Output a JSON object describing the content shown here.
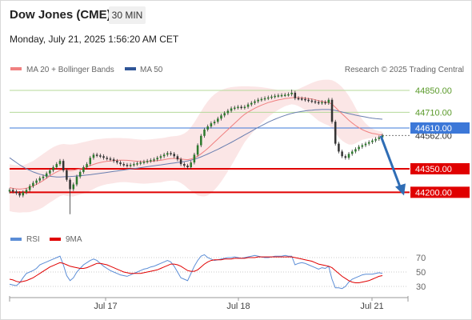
{
  "header": {
    "title": "Dow Jones (CME)",
    "timeframe": "30 MIN",
    "datetime": "Monday, July 21, 2025 1:56:20 AM CET"
  },
  "legend": {
    "ma20_bb": "MA 20 + Bollinger Bands",
    "ma50": "MA 50",
    "credit": "Research © 2025 Trading Central"
  },
  "rsi_legend": {
    "rsi": "RSI",
    "ma9": "9MA"
  },
  "colors": {
    "ma20": "#f08080",
    "ma50": "#2f5597",
    "bollinger": "#fadcdc",
    "support": "#e00000",
    "resistance": "#7ab648",
    "pivot": "#3c78d8",
    "candle": "#2d7a2d",
    "rsi": "#5b8dd6",
    "rsi_ma": "#e00000"
  },
  "chart_data": [
    {
      "type": "candlestick",
      "title": "",
      "x_ticks": [
        "Jul 17",
        "Jul 18",
        "Jul 21"
      ],
      "ylim": [
        44100,
        44950
      ],
      "levels": [
        {
          "label": "44850.00",
          "value": 44850,
          "kind": "resistance"
        },
        {
          "label": "44710.00",
          "value": 44710,
          "kind": "resistance"
        },
        {
          "label": "44610.00",
          "value": 44610,
          "kind": "pivot"
        },
        {
          "label": "44562.00",
          "value": 44562,
          "kind": "last"
        },
        {
          "label": "44350.00",
          "value": 44350,
          "kind": "support"
        },
        {
          "label": "44200.00",
          "value": 44200,
          "kind": "support"
        }
      ],
      "projection": {
        "from": 44560,
        "to": 44200,
        "direction": "down"
      },
      "closes": [
        44215,
        44205,
        44195,
        44180,
        44200,
        44215,
        44240,
        44260,
        44275,
        44290,
        44300,
        44320,
        44340,
        44360,
        44380,
        44400,
        44340,
        44280,
        44220,
        44250,
        44300,
        44330,
        44360,
        44380,
        44420,
        44440,
        44435,
        44430,
        44420,
        44415,
        44410,
        44400,
        44390,
        44380,
        44375,
        44370,
        44375,
        44380,
        44385,
        44390,
        44395,
        44400,
        44405,
        44410,
        44420,
        44430,
        44440,
        44450,
        44445,
        44430,
        44410,
        44380,
        44370,
        44360,
        44390,
        44440,
        44500,
        44560,
        44600,
        44620,
        44640,
        44650,
        44670,
        44690,
        44705,
        44720,
        44735,
        44740,
        44745,
        44740,
        44745,
        44760,
        44770,
        44780,
        44790,
        44795,
        44800,
        44805,
        44810,
        44815,
        44818,
        44820,
        44822,
        44825,
        44835,
        44800,
        44798,
        44795,
        44790,
        44785,
        44780,
        44775,
        44770,
        44775,
        44770,
        44790,
        44650,
        44510,
        44460,
        44430,
        44420,
        44445,
        44460,
        44475,
        44490,
        44500,
        44510,
        44520,
        44530,
        44540,
        44550,
        44562
      ],
      "ma20": [
        44230,
        44225,
        44222,
        44220,
        44222,
        44226,
        44232,
        44240,
        44250,
        44262,
        44275,
        44290,
        44305,
        44318,
        44330,
        44340,
        44345,
        44342,
        44338,
        44340,
        44345,
        44350,
        44356,
        44362,
        44370,
        44378,
        44385,
        44390,
        44394,
        44398,
        44400,
        44402,
        44404,
        44405,
        44405,
        44404,
        44402,
        44400,
        44398,
        44396,
        44395,
        44396,
        44398,
        44400,
        44402,
        44404,
        44408,
        44412,
        44415,
        44416,
        44415,
        44412,
        44410,
        44408,
        44412,
        44420,
        44430,
        44445,
        44462,
        44480,
        44500,
        44520,
        44540,
        44560,
        44580,
        44600,
        44620,
        44640,
        44660,
        44680,
        44698,
        44712,
        44724,
        44736,
        44746,
        44756,
        44764,
        44772,
        44778,
        44784,
        44789,
        44793,
        44797,
        44800,
        44803,
        44804,
        44804,
        44803,
        44801,
        44798,
        44795,
        44790,
        44784,
        44780,
        44776,
        44772,
        44762,
        44742,
        44720,
        44700,
        44680,
        44660,
        44642,
        44626,
        44612,
        44600,
        44590,
        44582,
        44576,
        44572,
        44568,
        44565
      ],
      "ma50": [
        44420,
        44405,
        44390,
        44375,
        44362,
        44350,
        44340,
        44330,
        44322,
        44315,
        44310,
        44305,
        44302,
        44300,
        44298,
        44298,
        44299,
        44300,
        44301,
        44302,
        44304,
        44306,
        44308,
        44310,
        44312,
        44315,
        44318,
        44321,
        44324,
        44327,
        44330,
        44333,
        44336,
        44339,
        44342,
        44345,
        44348,
        44351,
        44354,
        44357,
        44360,
        44363,
        44366,
        44369,
        44372,
        44375,
        44378,
        44381,
        44384,
        44387,
        44390,
        44393,
        44396,
        44400,
        44405,
        44411,
        44418,
        44426,
        44435,
        44444,
        44454,
        44464,
        44474,
        44485,
        44496,
        44507,
        44518,
        44530,
        44542,
        44554,
        44566,
        44578,
        44590,
        44602,
        44614,
        44625,
        44636,
        44647,
        44657,
        44666,
        44675,
        44683,
        44690,
        44697,
        44703,
        44708,
        44712,
        44716,
        44719,
        44722,
        44724,
        44726,
        44727,
        44728,
        44728,
        44728,
        44726,
        44722,
        44717,
        44712,
        44707,
        44702,
        44697,
        44692,
        44688,
        44684,
        44680,
        44676,
        44673,
        44670,
        44668,
        44666
      ],
      "bb_upper": [
        44380,
        44375,
        44372,
        44370,
        44372,
        44380,
        44390,
        44400,
        44415,
        44430,
        44445,
        44460,
        44475,
        44488,
        44498,
        44505,
        44508,
        44506,
        44504,
        44506,
        44510,
        44515,
        44520,
        44525,
        44530,
        44535,
        44538,
        44540,
        44542,
        44544,
        44545,
        44546,
        44546,
        44546,
        44545,
        44544,
        44542,
        44540,
        44538,
        44536,
        44535,
        44536,
        44538,
        44540,
        44542,
        44545,
        44548,
        44552,
        44556,
        44558,
        44560,
        44565,
        44575,
        44590,
        44615,
        44645,
        44680,
        44715,
        44750,
        44780,
        44805,
        44825,
        44840,
        44852,
        44860,
        44866,
        44870,
        44873,
        44875,
        44876,
        44876,
        44876,
        44875,
        44874,
        44872,
        44870,
        44867,
        44864,
        44860,
        44856,
        44852,
        44848,
        44845,
        44844,
        44845,
        44850,
        44858,
        44868,
        44878,
        44888,
        44898,
        44906,
        44912,
        44916,
        44918,
        44918,
        44915,
        44905,
        44890,
        44870,
        44845,
        44815,
        44780,
        44740,
        44700,
        44665,
        44640,
        44620,
        44606,
        44596,
        44590,
        44586
      ],
      "bb_lower": [
        44080,
        44075,
        44072,
        44070,
        44072,
        44072,
        44074,
        44080,
        44085,
        44094,
        44105,
        44120,
        44135,
        44148,
        44162,
        44175,
        44182,
        44178,
        44172,
        44174,
        44180,
        44185,
        44192,
        44199,
        44210,
        44221,
        44232,
        44240,
        44246,
        44252,
        44255,
        44258,
        44262,
        44264,
        44265,
        44264,
        44262,
        44260,
        44258,
        44256,
        44255,
        44256,
        44258,
        44260,
        44262,
        44263,
        44268,
        44272,
        44274,
        44274,
        44270,
        44259,
        44245,
        44226,
        44209,
        44195,
        44180,
        44175,
        44174,
        44180,
        44195,
        44215,
        44240,
        44268,
        44300,
        44334,
        44370,
        44407,
        44445,
        44484,
        44520,
        44548,
        44573,
        44598,
        44620,
        44642,
        44661,
        44680,
        44696,
        44712,
        44726,
        44738,
        44749,
        44756,
        44761,
        44758,
        44750,
        44738,
        44724,
        44708,
        44692,
        44674,
        44656,
        44644,
        44634,
        44626,
        44609,
        44579,
        44550,
        44530,
        44515,
        44505,
        44504,
        44512,
        44524,
        44535,
        44540,
        44544,
        44546,
        44548,
        44546,
        44544
      ]
    },
    {
      "type": "line",
      "title": "",
      "series_names": [
        "RSI",
        "9MA"
      ],
      "ylim": [
        10,
        90
      ],
      "y_ticks": [
        70,
        50,
        30
      ],
      "rsi": [
        33,
        32,
        31,
        35,
        42,
        48,
        50,
        52,
        55,
        60,
        62,
        64,
        66,
        68,
        70,
        72,
        60,
        45,
        38,
        42,
        50,
        55,
        60,
        63,
        66,
        68,
        66,
        62,
        58,
        55,
        52,
        50,
        48,
        46,
        45,
        44,
        46,
        48,
        50,
        52,
        54,
        55,
        57,
        58,
        60,
        62,
        64,
        66,
        64,
        58,
        50,
        42,
        40,
        38,
        48,
        58,
        66,
        72,
        74,
        70,
        68,
        66,
        67,
        68,
        69,
        70,
        70,
        71,
        70,
        69,
        70,
        71,
        72,
        73,
        72,
        71,
        70,
        70,
        71,
        72,
        72,
        72,
        73,
        72,
        72,
        60,
        62,
        63,
        62,
        60,
        58,
        56,
        54,
        56,
        55,
        58,
        40,
        28,
        28,
        27,
        30,
        36,
        40,
        42,
        44,
        46,
        47,
        47,
        47,
        48,
        49,
        48
      ],
      "ma9": [
        40,
        39,
        37,
        36,
        37,
        38,
        40,
        42,
        45,
        48,
        51,
        54,
        57,
        59,
        61,
        63,
        62,
        60,
        58,
        57,
        56,
        55,
        55,
        56,
        58,
        60,
        62,
        62,
        61,
        60,
        58,
        56,
        54,
        52,
        50,
        49,
        48,
        48,
        48,
        48,
        49,
        50,
        51,
        52,
        53,
        55,
        57,
        59,
        61,
        61,
        60,
        58,
        55,
        52,
        51,
        51,
        53,
        57,
        61,
        64,
        66,
        67,
        67,
        67,
        68,
        68,
        68,
        69,
        69,
        69,
        69,
        70,
        70,
        70,
        71,
        71,
        71,
        71,
        71,
        71,
        71,
        71,
        71,
        71,
        71,
        70,
        69,
        68,
        67,
        66,
        65,
        63,
        61,
        60,
        59,
        58,
        56,
        52,
        48,
        44,
        41,
        38,
        36,
        35,
        35,
        36,
        37,
        38,
        40,
        42,
        44,
        45
      ]
    }
  ],
  "rsi_ticks": [
    "70",
    "50",
    "30"
  ]
}
